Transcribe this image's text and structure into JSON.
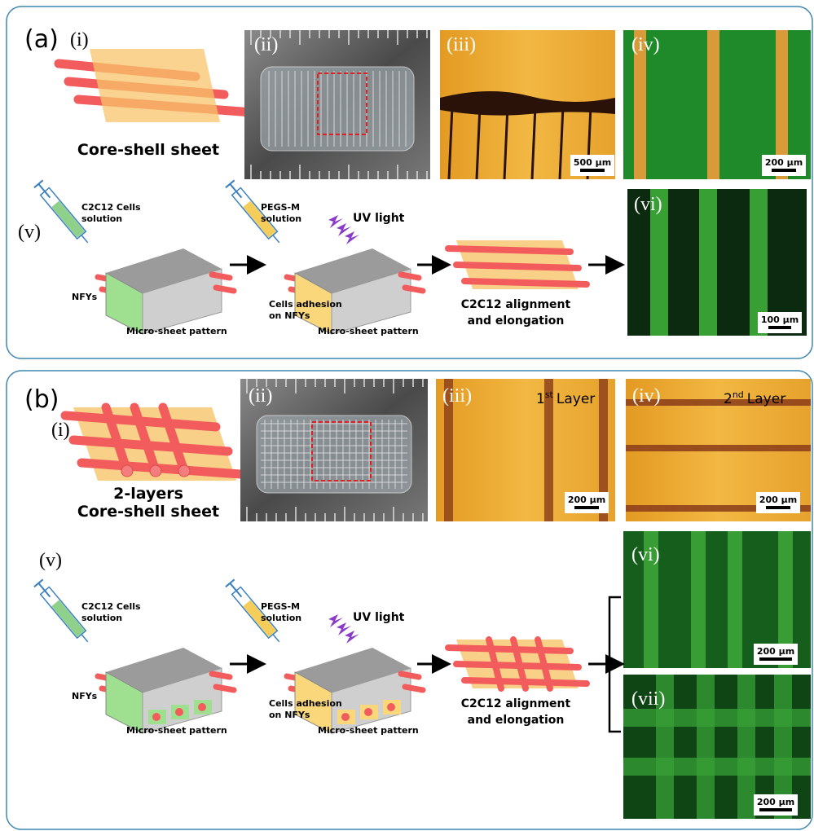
{
  "panel_a": {
    "label": "(a)",
    "i": {
      "label": "(i)",
      "caption": [
        "Core-shell sheet"
      ]
    },
    "ii": {
      "label": "(ii)"
    },
    "iii": {
      "label": "(iii)",
      "scale_bar": "500 μm"
    },
    "iv": {
      "label": "(iv)",
      "scale_bar": "200 μm"
    },
    "v": {
      "label": "(v)",
      "step1": {
        "syringe": [
          "C2C12 Cells",
          "solution"
        ],
        "fibers": "NFYs",
        "block": "Micro-sheet pattern"
      },
      "step2": {
        "syringe": [
          "PEGS-M",
          "solution"
        ],
        "light": "UV light",
        "adhesion": [
          "Cells adhesion",
          "on NFYs"
        ],
        "block": "Micro-sheet pattern"
      },
      "step3": {
        "result": [
          "C2C12 alignment",
          "and elongation"
        ]
      }
    },
    "vi": {
      "label": "(vi)",
      "scale_bar": "100 μm"
    }
  },
  "panel_b": {
    "label": "(b)",
    "i": {
      "label": "(i)",
      "caption": [
        "2-layers",
        "Core-shell sheet"
      ]
    },
    "ii": {
      "label": "(ii)"
    },
    "iii": {
      "label": "(iii)",
      "layer": {
        "number": "1",
        "suffix": "st",
        "text": "Layer"
      },
      "scale_bar": "200 μm"
    },
    "iv": {
      "label": "(iv)",
      "layer": {
        "number": "2",
        "suffix": "nd",
        "text": "Layer"
      },
      "scale_bar": "200 μm"
    },
    "v": {
      "label": "(v)",
      "step1": {
        "syringe": [
          "C2C12 Cells",
          "solution"
        ],
        "fibers": "NFYs",
        "block": "Micro-sheet pattern"
      },
      "step2": {
        "syringe": [
          "PEGS-M",
          "solution"
        ],
        "light": "UV light",
        "adhesion": [
          "Cells adhesion",
          "on NFYs"
        ],
        "block": "Micro-sheet pattern"
      },
      "step3": {
        "result": [
          "C2C12 alignment",
          "and elongation"
        ]
      }
    },
    "vi": {
      "label": "(vi)",
      "scale_bar": "200 μm"
    },
    "vii": {
      "label": "(vii)",
      "scale_bar": "200 μm"
    }
  }
}
